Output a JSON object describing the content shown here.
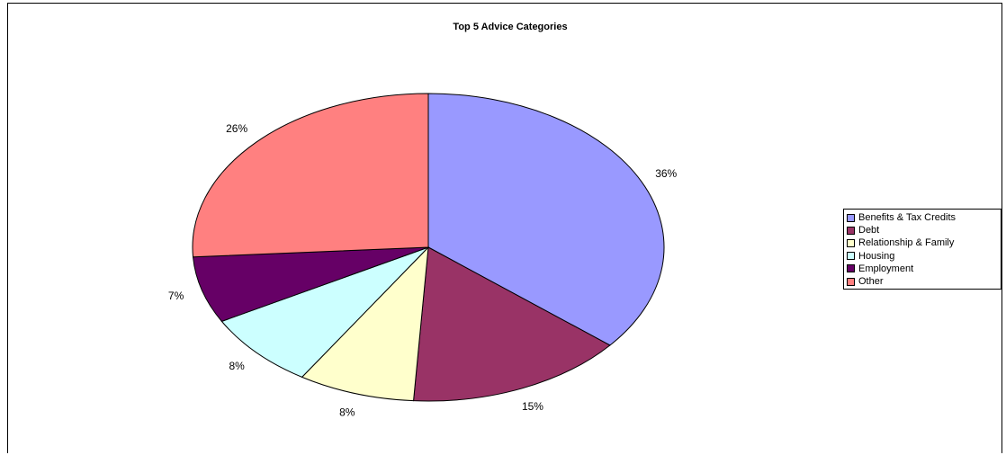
{
  "chart_data": {
    "type": "pie",
    "title": "Top 5 Advice Categories",
    "categories": [
      "Benefits & Tax Credits",
      "Debt",
      "Relationship & Family",
      "Housing",
      "Employment",
      "Other"
    ],
    "values": [
      36,
      15,
      8,
      8,
      7,
      26
    ],
    "labels": [
      "36%",
      "15%",
      "8%",
      "8%",
      "7%",
      "26%"
    ],
    "colors": [
      "#9999FF",
      "#993366",
      "#FFFFCC",
      "#CCFFFF",
      "#660066",
      "#FF8080"
    ],
    "legend_position": "right"
  }
}
